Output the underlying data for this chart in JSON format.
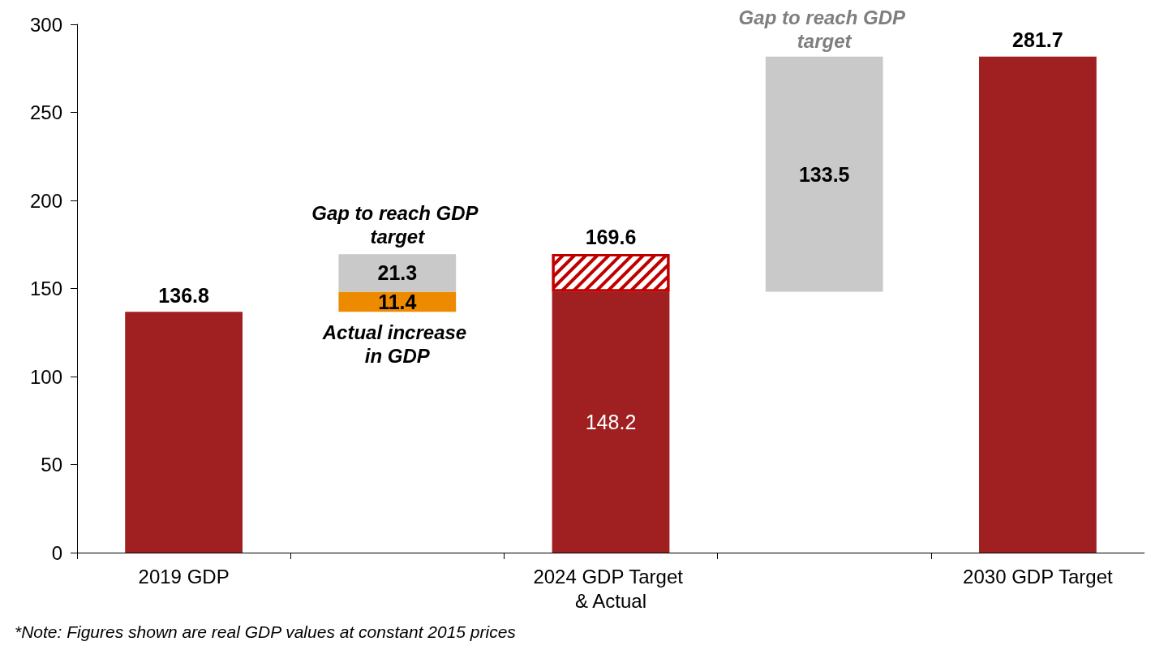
{
  "chart_data": {
    "type": "bar",
    "categories": [
      "2019 GDP",
      null,
      "2024 GDP Target & Actual",
      null,
      "2030 GDP Target"
    ],
    "series": [
      {
        "color": "#a01f20",
        "base": [
          0,
          null,
          0,
          null,
          0
        ],
        "values": [
          136.8,
          null,
          148.2,
          null,
          281.7
        ],
        "value_labels": [
          "136.8",
          null,
          "148.2",
          null,
          "281.7"
        ]
      },
      {
        "color": "#ed8b00",
        "base": [
          null,
          136.8,
          null,
          null,
          null
        ],
        "values": [
          null,
          11.4,
          null,
          null,
          null
        ],
        "value_labels": [
          null,
          "11.4",
          null,
          null,
          null
        ]
      },
      {
        "color": "#c9c9c9",
        "base": [
          null,
          148.2,
          null,
          148.2,
          null
        ],
        "values": [
          null,
          21.3,
          null,
          133.5,
          null
        ],
        "value_labels": [
          null,
          "21.3",
          null,
          "133.5",
          null
        ]
      },
      {
        "color": "#c00000",
        "base": [
          null,
          null,
          148.2,
          null,
          null
        ],
        "values": [
          null,
          null,
          21.4,
          null,
          null
        ],
        "value_labels": [
          null,
          null,
          "169.6",
          null,
          null
        ]
      }
    ],
    "ylim": [
      0,
      300
    ],
    "yticks": [
      0,
      50,
      100,
      150,
      200,
      250,
      300
    ],
    "grid": false,
    "annotations": [
      "Gap to reach GDP target",
      "Actual increase in GDP",
      "Gap to reach GDP target",
      "*Note: Figures shown are real GDP values at constant 2015 prices"
    ]
  }
}
